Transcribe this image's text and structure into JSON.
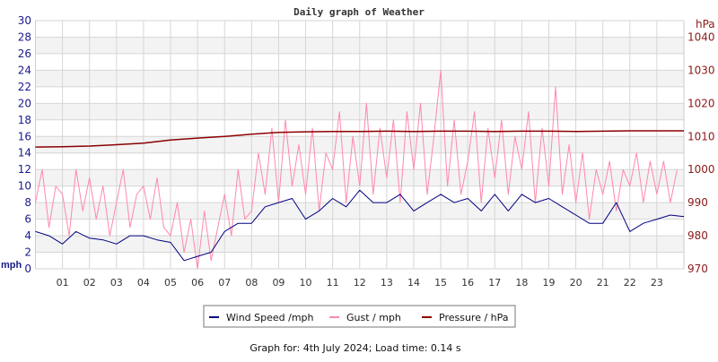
{
  "chart_data": {
    "type": "line",
    "title": "Daily graph of Weather",
    "footer": "Graph for: 4th July 2024; Load time: 0.14 s",
    "left_axis": {
      "label": "mph",
      "range": [
        0,
        30
      ],
      "ticks": [
        0,
        2,
        4,
        6,
        8,
        10,
        12,
        14,
        16,
        18,
        20,
        22,
        24,
        26,
        28,
        30
      ],
      "color": "#1a1a8c"
    },
    "right_axis": {
      "label": "hPa",
      "range": [
        970,
        1045
      ],
      "ticks": [
        970,
        980,
        990,
        1000,
        1010,
        1020,
        1030,
        1040
      ],
      "color": "#8b1a1a"
    },
    "x_axis": {
      "range_hours": [
        0,
        24
      ],
      "tick_labels": [
        "01",
        "02",
        "03",
        "04",
        "05",
        "06",
        "07",
        "08",
        "09",
        "10",
        "11",
        "12",
        "13",
        "14",
        "15",
        "16",
        "17",
        "18",
        "19",
        "20",
        "21",
        "22",
        "23"
      ]
    },
    "grid": true,
    "legend_placement": "bottom",
    "series": [
      {
        "name": "Wind Speed /mph",
        "color": "#000080",
        "axis": "left",
        "step_hours": 0.5,
        "values": [
          4.5,
          4,
          3,
          4.5,
          3.7,
          3.5,
          3,
          4,
          4,
          3.5,
          3.2,
          1,
          1.5,
          2,
          4.5,
          5.5,
          5.5,
          7.5,
          8,
          8.5,
          6,
          7,
          8.5,
          7.5,
          9.5,
          8,
          8,
          9,
          7,
          8,
          9,
          8,
          8.5,
          7,
          9,
          7,
          9,
          8,
          8.5,
          7.5,
          6.5,
          5.5,
          5.5,
          8,
          4.5,
          5.5,
          6,
          6.5,
          6.3
        ]
      },
      {
        "name": "Gust / mph",
        "color": "#ff88aa",
        "axis": "left",
        "step_hours": 0.25,
        "values": [
          8,
          12,
          5,
          10,
          9,
          4,
          12,
          7,
          11,
          6,
          10,
          4,
          8,
          12,
          5,
          9,
          10,
          6,
          11,
          5,
          4,
          8,
          2,
          6,
          0,
          7,
          1,
          5,
          9,
          4,
          12,
          6,
          7,
          14,
          9,
          17,
          8,
          18,
          10,
          15,
          9,
          17,
          7,
          14,
          12,
          19,
          8,
          16,
          10,
          20,
          9,
          17,
          11,
          18,
          8,
          19,
          12,
          20,
          9,
          16,
          24,
          10,
          18,
          9,
          13,
          19,
          8,
          17,
          11,
          18,
          9,
          16,
          12,
          19,
          8,
          17,
          10,
          22,
          9,
          15,
          8,
          14,
          6,
          12,
          9,
          13,
          7,
          12,
          10,
          14,
          8,
          13,
          9,
          13,
          8,
          12
        ]
      },
      {
        "name": "Pressure / hPa",
        "color": "#8b0000",
        "axis": "right",
        "step_hours": 1,
        "values": [
          1006.8,
          1006.9,
          1007.1,
          1007.5,
          1008,
          1008.9,
          1009.5,
          1010,
          1010.7,
          1011.2,
          1011.4,
          1011.5,
          1011.5,
          1011.6,
          1011.5,
          1011.6,
          1011.6,
          1011.5,
          1011.6,
          1011.6,
          1011.5,
          1011.6,
          1011.7,
          1011.7,
          1011.7
        ]
      }
    ]
  }
}
